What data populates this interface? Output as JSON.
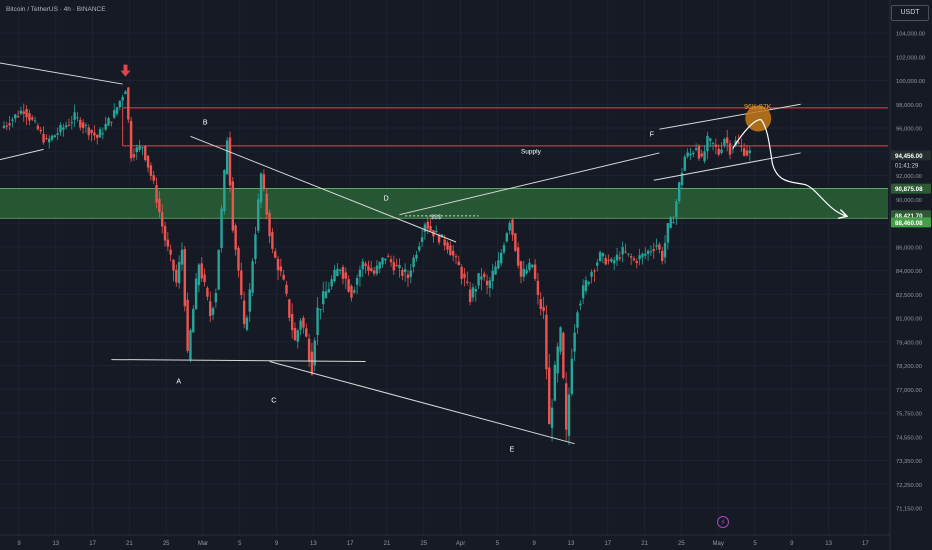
{
  "header": {
    "symbol_title": "Bitcoin / TetherUS · 4h · BINANCE",
    "currency_button": "USDT"
  },
  "colors": {
    "background": "#161a25",
    "grid": "#1f2330",
    "candle_up": "#26a69a",
    "candle_down": "#ef5350",
    "resistance_line": "#e0454a",
    "demand_zone": "#2e6b3a",
    "trendline": "#d9d9d9",
    "target_circle": "#c47a1a",
    "label_text": "#ffffff"
  },
  "chart_data": {
    "type": "candlestick",
    "symbol": "BTCUSDT",
    "interval": "4h",
    "y_ticks": [
      "104,000.00",
      "102,000.00",
      "100,000.00",
      "98,000.00",
      "96,000.00",
      "94,000.00",
      "92,000.00",
      "90,000.00",
      "88,000.00",
      "86,000.00",
      "84,000.00",
      "82,500.00",
      "81,000.00",
      "79,400.00",
      "78,200.00",
      "77,000.00",
      "75,750.00",
      "74,550.00",
      "73,350.00",
      "72,250.00",
      "71,150.00"
    ],
    "x_ticks": [
      "9",
      "13",
      "17",
      "21",
      "25",
      "Mar",
      "5",
      "9",
      "13",
      "17",
      "21",
      "25",
      "Apr",
      "5",
      "9",
      "13",
      "17",
      "21",
      "25",
      "May",
      "5",
      "9",
      "13",
      "17"
    ],
    "price_path": [
      [
        0,
        96000
      ],
      [
        4,
        97600
      ],
      [
        8,
        94800
      ],
      [
        13,
        96900
      ],
      [
        17,
        95200
      ],
      [
        20,
        97200
      ],
      [
        22,
        99400
      ],
      [
        23,
        93800
      ],
      [
        25,
        94500
      ],
      [
        27,
        91200
      ],
      [
        29,
        86600
      ],
      [
        31,
        83200
      ],
      [
        32,
        85800
      ],
      [
        33,
        78500
      ],
      [
        35,
        84600
      ],
      [
        37,
        81200
      ],
      [
        38,
        82800
      ],
      [
        40,
        95200
      ],
      [
        41,
        87800
      ],
      [
        43,
        80200
      ],
      [
        44,
        82600
      ],
      [
        46,
        92100
      ],
      [
        48,
        85600
      ],
      [
        50,
        83100
      ],
      [
        52,
        79400
      ],
      [
        53,
        81000
      ],
      [
        55,
        78200
      ],
      [
        56,
        81500
      ],
      [
        58,
        83000
      ],
      [
        60,
        84300
      ],
      [
        62,
        82600
      ],
      [
        64,
        84600
      ],
      [
        66,
        83800
      ],
      [
        68,
        85200
      ],
      [
        70,
        84200
      ],
      [
        72,
        83600
      ],
      [
        74,
        86400
      ],
      [
        75,
        88100
      ],
      [
        76,
        87400
      ],
      [
        78,
        86600
      ],
      [
        79,
        86100
      ],
      [
        81,
        84300
      ],
      [
        83,
        82300
      ],
      [
        85,
        83800
      ],
      [
        86,
        82900
      ],
      [
        88,
        84600
      ],
      [
        90,
        88300
      ],
      [
        92,
        83600
      ],
      [
        94,
        84500
      ],
      [
        95,
        82200
      ],
      [
        96,
        81200
      ],
      [
        97,
        75000
      ],
      [
        98,
        77800
      ],
      [
        99,
        80000
      ],
      [
        100,
        74600
      ],
      [
        101,
        78900
      ],
      [
        102,
        81800
      ],
      [
        104,
        83600
      ],
      [
        106,
        85200
      ],
      [
        108,
        84600
      ],
      [
        110,
        85600
      ],
      [
        112,
        84800
      ],
      [
        114,
        85400
      ],
      [
        116,
        86200
      ],
      [
        117,
        85100
      ],
      [
        118,
        87600
      ],
      [
        119,
        88500
      ],
      [
        120,
        91200
      ],
      [
        121,
        93600
      ],
      [
        122,
        93800
      ],
      [
        123,
        94500
      ],
      [
        124,
        93200
      ],
      [
        125,
        94900
      ],
      [
        126,
        94600
      ],
      [
        127,
        93900
      ],
      [
        128,
        95200
      ],
      [
        129,
        94200
      ],
      [
        130,
        94800
      ],
      [
        131,
        94300
      ],
      [
        132,
        93900
      ]
    ],
    "levels": {
      "resistance_upper": 97700,
      "resistance_supply": 94500,
      "demand_zone": [
        88400,
        90900
      ],
      "previous_high_marker": 99400
    },
    "current_price": "94,456.00",
    "countdown": "01:41:29",
    "price_tags": [
      "90,875.08",
      "88,421.70",
      "88,460.08"
    ],
    "labels": {
      "A": "A",
      "B": "B",
      "C": "C",
      "D": "D",
      "E": "E",
      "F": "F",
      "liquidity": "$$$",
      "supply": "Supply",
      "target": "96K-97K"
    }
  }
}
